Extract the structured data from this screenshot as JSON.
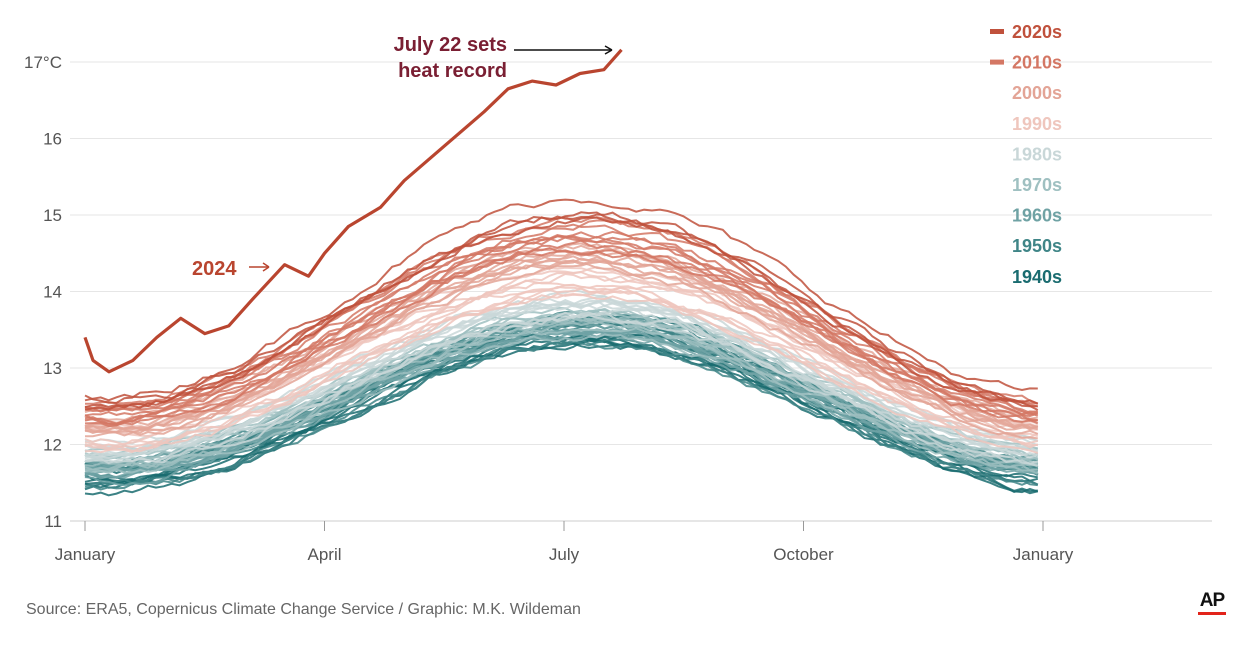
{
  "chart_data": {
    "type": "line",
    "title": "",
    "xlabel": "",
    "ylabel": "",
    "y_unit": "°C",
    "ylim": [
      11,
      17.3
    ],
    "y_ticks": [
      11,
      12,
      13,
      14,
      15,
      16,
      17
    ],
    "y_tick_labels": [
      "11",
      "12",
      "13",
      "14",
      "15",
      "16",
      "17°C"
    ],
    "x_ticks": [
      {
        "label": "January",
        "month": 1
      },
      {
        "label": "April",
        "month": 4
      },
      {
        "label": "July",
        "month": 7
      },
      {
        "label": "October",
        "month": 10
      },
      {
        "label": "January",
        "month": 13
      }
    ],
    "grid": true,
    "legend_position": "top-right",
    "decades": [
      {
        "name": "2020s",
        "color": "#c0513c",
        "jan1": 12.75,
        "amp": 2.05,
        "peak_offset": 0.45,
        "count": 4,
        "marker": true
      },
      {
        "name": "2010s",
        "color": "#d47764",
        "jan1": 12.55,
        "amp": 2.0,
        "peak_offset": 0.35,
        "count": 10,
        "marker": true
      },
      {
        "name": "2000s",
        "color": "#e3a496",
        "jan1": 12.4,
        "amp": 1.95,
        "peak_offset": 0.25,
        "count": 10,
        "marker": false
      },
      {
        "name": "1990s",
        "color": "#efc6bd",
        "jan1": 12.2,
        "amp": 1.9,
        "peak_offset": 0.15,
        "count": 10,
        "marker": false
      },
      {
        "name": "1980s",
        "color": "#c9d7d8",
        "jan1": 12.05,
        "amp": 1.85,
        "peak_offset": 0.05,
        "count": 10,
        "marker": false
      },
      {
        "name": "1970s",
        "color": "#9fc0c1",
        "jan1": 11.9,
        "amp": 1.85,
        "peak_offset": 0.0,
        "count": 10,
        "marker": false
      },
      {
        "name": "1960s",
        "color": "#6fa2a4",
        "jan1": 11.8,
        "amp": 1.85,
        "peak_offset": 0.0,
        "count": 10,
        "marker": false
      },
      {
        "name": "1950s",
        "color": "#3f8587",
        "jan1": 11.75,
        "amp": 1.9,
        "peak_offset": 0.0,
        "count": 10,
        "marker": false
      },
      {
        "name": "1940s",
        "color": "#1a6c70",
        "jan1": 11.7,
        "amp": 1.9,
        "peak_offset": 0.0,
        "count": 10,
        "marker": false
      }
    ],
    "highlight_2024": {
      "label": "2024",
      "color": "#b9452f",
      "points": [
        {
          "month": 1.0,
          "t": 13.4
        },
        {
          "month": 1.1,
          "t": 13.1
        },
        {
          "month": 1.3,
          "t": 12.95
        },
        {
          "month": 1.6,
          "t": 13.1
        },
        {
          "month": 1.9,
          "t": 13.4
        },
        {
          "month": 2.2,
          "t": 13.65
        },
        {
          "month": 2.5,
          "t": 13.45
        },
        {
          "month": 2.8,
          "t": 13.55
        },
        {
          "month": 3.1,
          "t": 13.9
        },
        {
          "month": 3.5,
          "t": 14.35
        },
        {
          "month": 3.8,
          "t": 14.2
        },
        {
          "month": 4.0,
          "t": 14.5
        },
        {
          "month": 4.3,
          "t": 14.85
        },
        {
          "month": 4.7,
          "t": 15.1
        },
        {
          "month": 5.0,
          "t": 15.45
        },
        {
          "month": 5.5,
          "t": 15.9
        },
        {
          "month": 6.0,
          "t": 16.35
        },
        {
          "month": 6.3,
          "t": 16.65
        },
        {
          "month": 6.6,
          "t": 16.75
        },
        {
          "month": 6.9,
          "t": 16.7
        },
        {
          "month": 7.2,
          "t": 16.85
        },
        {
          "month": 7.5,
          "t": 16.9
        },
        {
          "month": 7.72,
          "t": 17.16
        }
      ]
    },
    "annotations": [
      {
        "id": "label_2024",
        "text": "2024",
        "color": "#b9452f"
      },
      {
        "id": "july22",
        "lines": [
          "July 22 sets",
          "heat record"
        ],
        "color": "#7a1f33"
      }
    ]
  },
  "footer": {
    "source": "Source: ERA5, Copernicus Climate Change Service / Graphic: M.K. Wildeman",
    "logo": "AP",
    "logo_accent": "#e2231a"
  }
}
